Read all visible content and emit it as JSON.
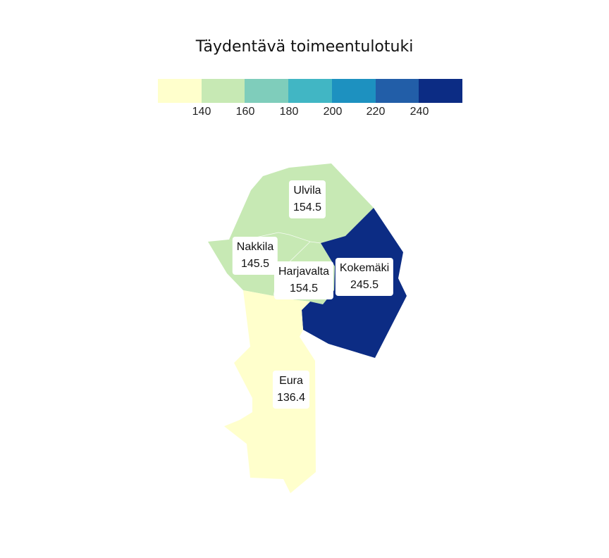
{
  "title": "Täydentävä toimeentulotuki",
  "legend": {
    "colors": [
      "#ffffcc",
      "#c7e9b4",
      "#7fcdbb",
      "#41b6c4",
      "#1d91c0",
      "#225ea8",
      "#0c2c84"
    ],
    "ticks": [
      "140",
      "160",
      "180",
      "200",
      "220",
      "240"
    ]
  },
  "regions": [
    {
      "name": "Ulvila",
      "value": "154.5",
      "color": "#c7e9b4"
    },
    {
      "name": "Nakkila",
      "value": "145.5",
      "color": "#c7e9b4"
    },
    {
      "name": "Harjavalta",
      "value": "154.5",
      "color": "#c7e9b4"
    },
    {
      "name": "Kokemäki",
      "value": "245.5",
      "color": "#0c2c84"
    },
    {
      "name": "Eura",
      "value": "136.4",
      "color": "#ffffcc"
    }
  ]
}
